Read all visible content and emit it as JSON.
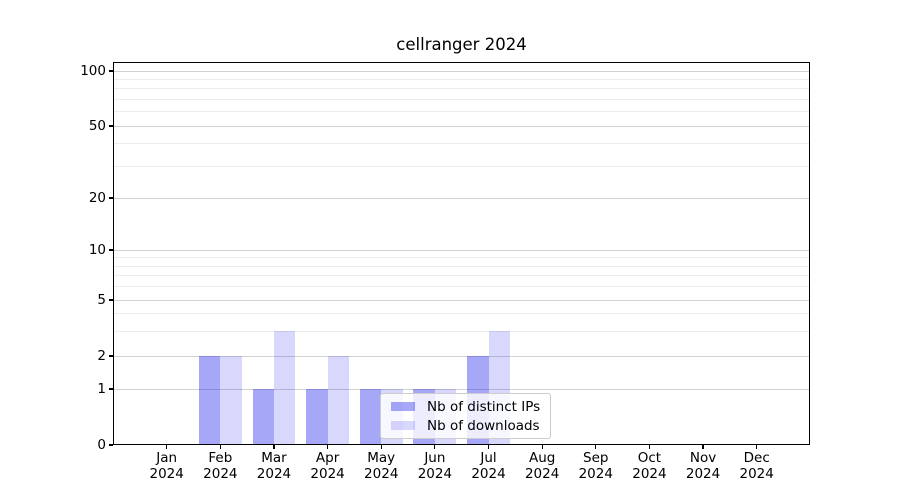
{
  "title": "cellranger 2024",
  "legend": {
    "items": [
      {
        "label": "Nb of distinct IPs",
        "series": "ip"
      },
      {
        "label": "Nb of downloads",
        "series": "downloads"
      }
    ]
  },
  "colors": {
    "bar_ip": "rgba(10,10,235,0.36)",
    "bar_downloads": "rgba(10,10,235,0.16)",
    "grid_major": "#d2d2d2",
    "grid_minor": "#ebebeb",
    "axis": "#000000",
    "background": "#ffffff",
    "text": "#000000"
  },
  "chart_data": {
    "type": "bar",
    "title": "cellranger 2024",
    "xlabel": "",
    "ylabel": "",
    "year": "2024",
    "months": [
      "Jan",
      "Feb",
      "Mar",
      "Apr",
      "May",
      "Jun",
      "Jul",
      "Aug",
      "Sep",
      "Oct",
      "Nov",
      "Dec"
    ],
    "categories": [
      "Jan 2024",
      "Feb 2024",
      "Mar 2024",
      "Apr 2024",
      "May 2024",
      "Jun 2024",
      "Jul 2024",
      "Aug 2024",
      "Sep 2024",
      "Oct 2024",
      "Nov 2024",
      "Dec 2024"
    ],
    "series": [
      {
        "name": "Nb of distinct IPs",
        "values": [
          0,
          2,
          1,
          1,
          1,
          1,
          2,
          0,
          0,
          0,
          0,
          0
        ]
      },
      {
        "name": "Nb of downloads",
        "values": [
          0,
          2,
          3,
          2,
          1,
          1,
          3,
          0,
          0,
          0,
          0,
          0
        ]
      }
    ],
    "y_scale": "symlog",
    "y_ticks": [
      0,
      1,
      2,
      5,
      10,
      20,
      50,
      100
    ],
    "y_tick_labels": [
      "0",
      "1",
      "2",
      "5",
      "10",
      "20",
      "50",
      "100"
    ],
    "y_minor_gridlines": [
      3,
      4,
      6,
      7,
      8,
      9,
      30,
      40,
      60,
      70,
      80,
      90
    ],
    "ylim": [
      0,
      115
    ],
    "grid": "on",
    "legend_position": "lower center"
  }
}
